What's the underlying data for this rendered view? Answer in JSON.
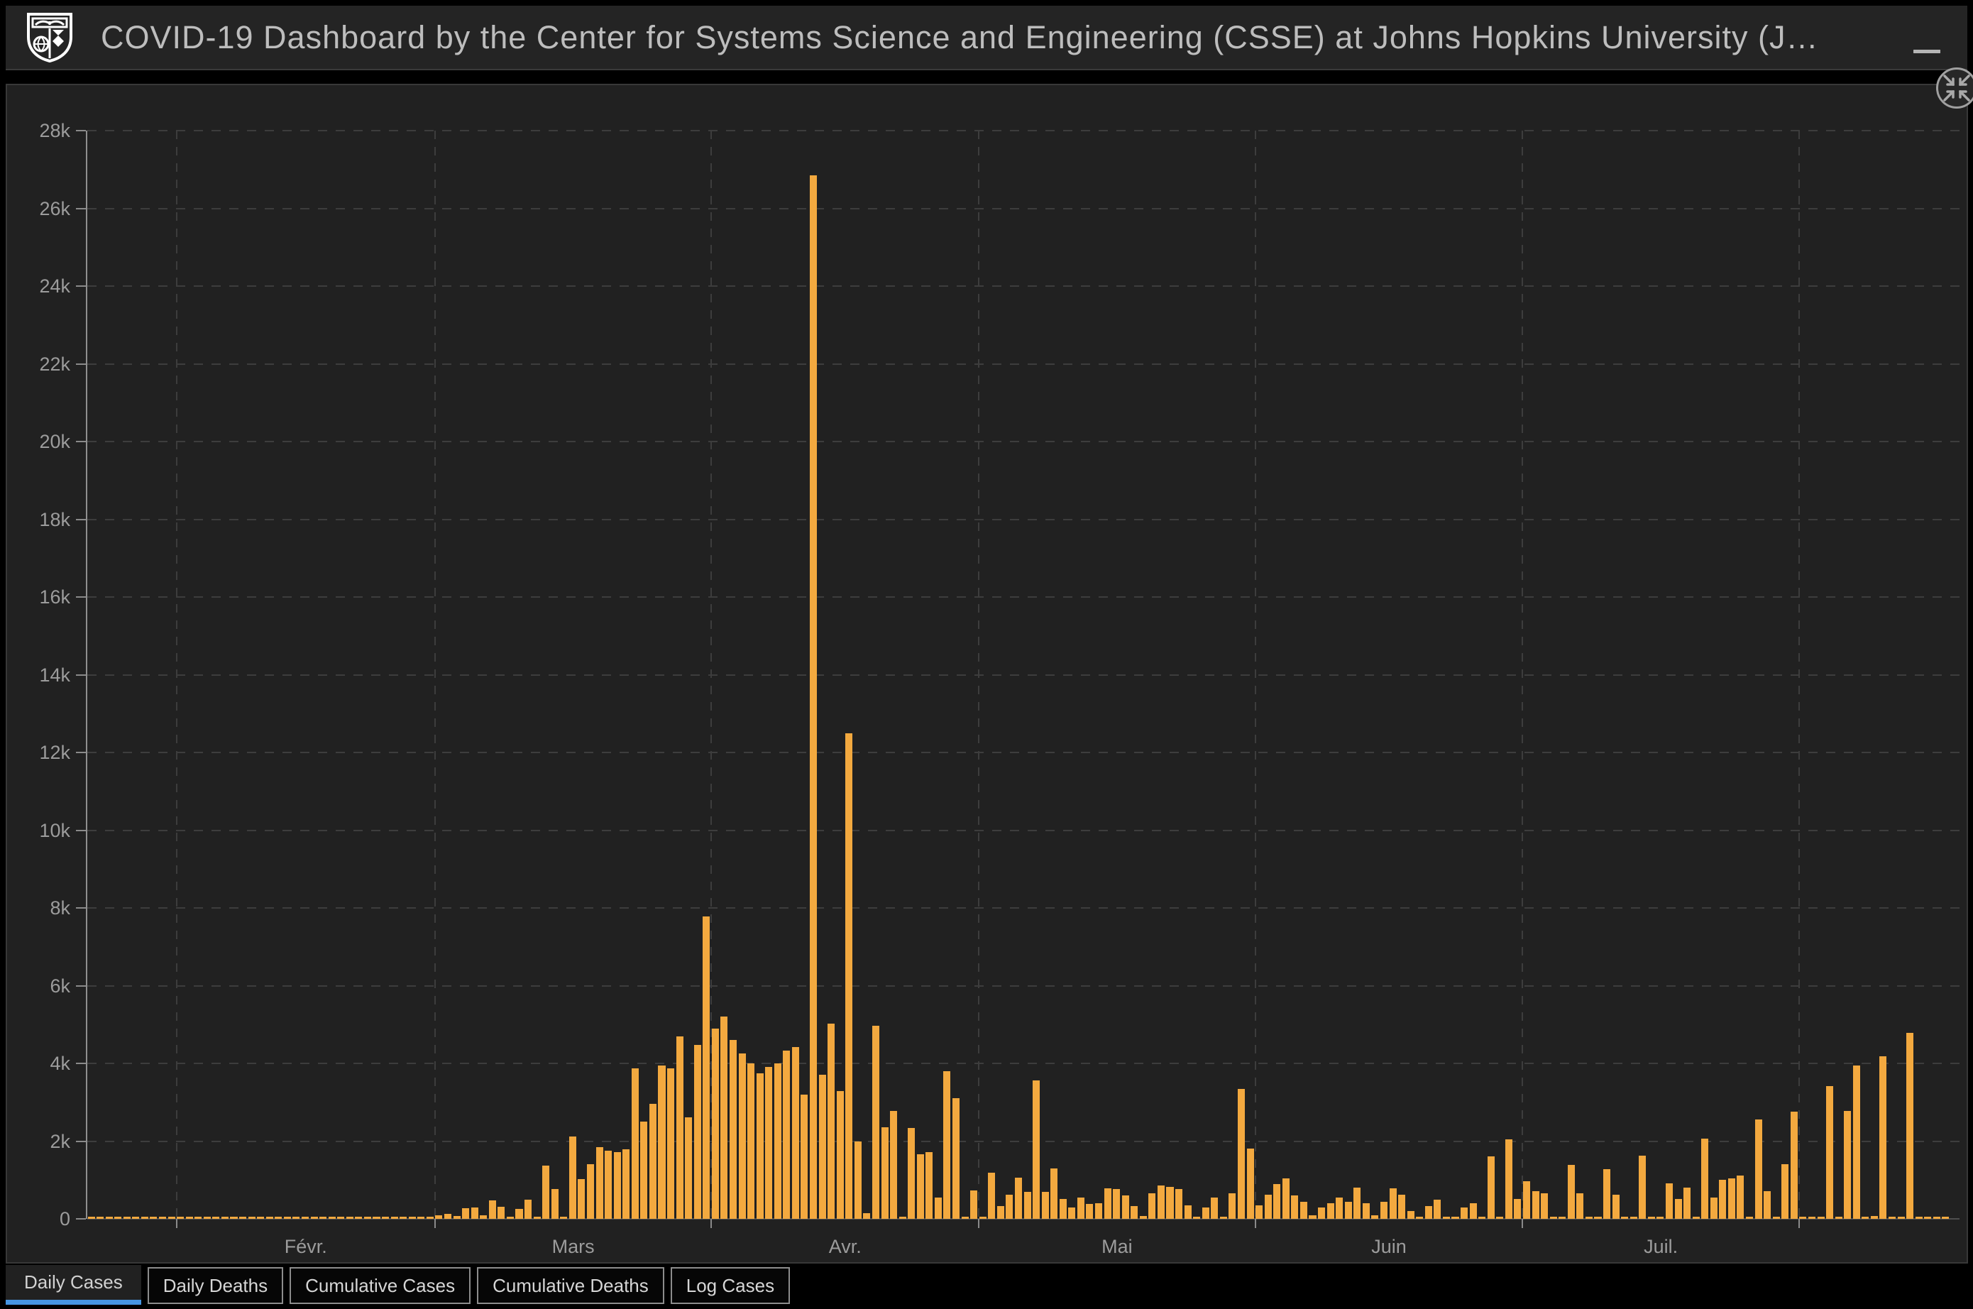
{
  "header": {
    "title": "COVID-19 Dashboard by the Center for Systems Science and Engineering (CSSE) at Johns Hopkins University (J…",
    "logo_icon": "jhu-shield-logo",
    "menu_icon": "hamburger-icon"
  },
  "chart_panel": {
    "collapse_icon": "collapse-inward-arrows-icon"
  },
  "tabs": [
    {
      "label": "Daily Cases",
      "active": true
    },
    {
      "label": "Daily Deaths",
      "active": false
    },
    {
      "label": "Cumulative Cases",
      "active": false
    },
    {
      "label": "Cumulative Deaths",
      "active": false
    },
    {
      "label": "Log Cases",
      "active": false
    }
  ],
  "colors": {
    "bar_orange": "#f3a93f",
    "accent_blue": "#4796e3",
    "panel_bg": "#212121",
    "header_bg": "#242424",
    "page_bg": "#000000",
    "grid": "#3d3d3d",
    "axis_text": "#9c9c9c"
  },
  "chart_data": {
    "type": "bar",
    "series_name": "Daily Cases",
    "unit": "cases",
    "start_date": "2020-01-22",
    "ylim": [
      0,
      28000
    ],
    "grid": true,
    "y_tick_labels": [
      "0",
      "2k",
      "4k",
      "6k",
      "8k",
      "10k",
      "12k",
      "14k",
      "16k",
      "18k",
      "20k",
      "22k",
      "24k",
      "26k",
      "28k"
    ],
    "x_tick_labels": [
      "Févr.",
      "Mars",
      "Avr.",
      "Mai",
      "Juin",
      "Juil."
    ],
    "month_boundary_day_index": [
      10,
      39,
      70,
      100,
      131,
      161,
      192
    ],
    "month_label_center_day_index": [
      24.5,
      54.5,
      85,
      115.5,
      146,
      176.5
    ],
    "total_slots": 210,
    "values": [
      2,
      1,
      2,
      1,
      1,
      1,
      1,
      2,
      1,
      2,
      2,
      1,
      2,
      1,
      2,
      1,
      2,
      1,
      2,
      1,
      2,
      1,
      2,
      1,
      2,
      1,
      2,
      1,
      2,
      1,
      2,
      1,
      2,
      5,
      10,
      18,
      21,
      38,
      52,
      100,
      136,
      70,
      280,
      300,
      90,
      470,
      310,
      30,
      250,
      490,
      30,
      1370,
      760,
      50,
      2120,
      1020,
      1410,
      1850,
      1760,
      1720,
      1790,
      3880,
      2500,
      2960,
      3950,
      3870,
      4690,
      2610,
      4480,
      7780,
      4900,
      5200,
      4600,
      4250,
      4000,
      3750,
      3900,
      4000,
      4330,
      4420,
      3190,
      26849,
      3700,
      5020,
      3280,
      12500,
      2000,
      150,
      4960,
      2360,
      2780,
      30,
      2340,
      1670,
      1720,
      550,
      3800,
      3110,
      50,
      740,
      30,
      1180,
      320,
      630,
      1060,
      700,
      3560,
      700,
      1300,
      520,
      300,
      550,
      390,
      410,
      780,
      770,
      600,
      320,
      80,
      650,
      850,
      820,
      770,
      350,
      10,
      300,
      550,
      10,
      650,
      3350,
      1810,
      350,
      620,
      900,
      1050,
      600,
      430,
      100,
      300,
      400,
      550,
      440,
      800,
      400,
      100,
      430,
      780,
      630,
      210,
      20,
      330,
      490,
      40,
      20,
      300,
      400,
      20,
      1600,
      20,
      2040,
      520,
      970,
      710,
      660,
      20,
      20,
      1380,
      660,
      30,
      20,
      1270,
      630,
      20,
      20,
      1630,
      20,
      30,
      920,
      520,
      810,
      20,
      2070,
      540,
      1000,
      1040,
      1110,
      20,
      2560,
      720,
      20,
      1400,
      2760,
      20,
      20,
      20,
      3420,
      20,
      2770,
      3940,
      20,
      70,
      4180,
      20,
      20,
      4790,
      20,
      20,
      10,
      10
    ]
  }
}
